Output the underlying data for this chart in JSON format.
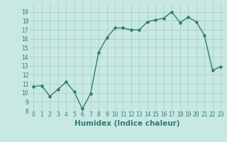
{
  "x": [
    0,
    1,
    2,
    3,
    4,
    5,
    6,
    7,
    8,
    9,
    10,
    11,
    12,
    13,
    14,
    15,
    16,
    17,
    18,
    19,
    20,
    21,
    22,
    23
  ],
  "y": [
    10.7,
    10.8,
    9.6,
    10.4,
    11.2,
    10.1,
    8.2,
    9.9,
    14.5,
    16.1,
    17.2,
    17.2,
    17.0,
    17.0,
    17.9,
    18.1,
    18.3,
    19.0,
    17.8,
    18.4,
    17.9,
    16.4,
    12.5,
    12.9
  ],
  "line_color": "#2d7d6e",
  "bg_color": "#c8e8e4",
  "grid_color": "#aacfca",
  "xlabel": "Humidex (Indice chaleur)",
  "xlim": [
    -0.5,
    23.5
  ],
  "ylim": [
    8,
    20
  ],
  "yticks": [
    8,
    9,
    10,
    11,
    12,
    13,
    14,
    15,
    16,
    17,
    18,
    19
  ],
  "xticks": [
    0,
    1,
    2,
    3,
    4,
    5,
    6,
    7,
    8,
    9,
    10,
    11,
    12,
    13,
    14,
    15,
    16,
    17,
    18,
    19,
    20,
    21,
    22,
    23
  ],
  "tick_label_fontsize": 5.5,
  "xlabel_fontsize": 7.5,
  "line_width": 1.0,
  "marker_size": 2.2
}
